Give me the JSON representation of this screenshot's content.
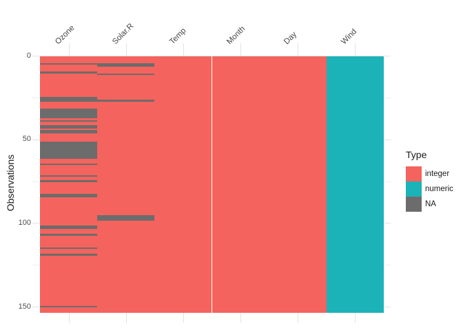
{
  "chart_data": {
    "type": "heatmap",
    "title": "",
    "y_axis": {
      "label": "Observations",
      "major_ticks": [
        0,
        50,
        100,
        150
      ],
      "minor_ticks": [
        25,
        75,
        125
      ],
      "range": [
        0,
        153
      ]
    },
    "n_observations": 153,
    "columns": [
      "Ozone",
      "Solar.R",
      "Temp",
      "Month",
      "Day",
      "Wind"
    ],
    "column_types": {
      "Ozone": "integer",
      "Solar.R": "integer",
      "Temp": "integer",
      "Month": "integer",
      "Day": "integer",
      "Wind": "numeric"
    },
    "na_rows": {
      "Ozone": [
        [
          5,
          5
        ],
        [
          10,
          10
        ],
        [
          25,
          27
        ],
        [
          32,
          37
        ],
        [
          39,
          39
        ],
        [
          42,
          43
        ],
        [
          45,
          46
        ],
        [
          52,
          61
        ],
        [
          65,
          65
        ],
        [
          72,
          72
        ],
        [
          75,
          75
        ],
        [
          83,
          84
        ],
        [
          102,
          103
        ],
        [
          107,
          107
        ],
        [
          115,
          115
        ],
        [
          119,
          119
        ],
        [
          150,
          150
        ]
      ],
      "Solar.R": [
        [
          5,
          6
        ],
        [
          11,
          11
        ],
        [
          27,
          27
        ],
        [
          96,
          98
        ]
      ]
    },
    "legend": {
      "title": "Type",
      "position": "right",
      "entries": [
        {
          "label": "integer",
          "color": "#F4635D"
        },
        {
          "label": "numeric",
          "color": "#1BB3B8"
        },
        {
          "label": "NA",
          "color": "#6C6C6C"
        }
      ]
    },
    "colors": {
      "background": "#FFFFFF",
      "gridline_major": "#E2E2E2",
      "gridline_minor": "#EDEDED",
      "axis_text": "#4D4D4D"
    }
  }
}
